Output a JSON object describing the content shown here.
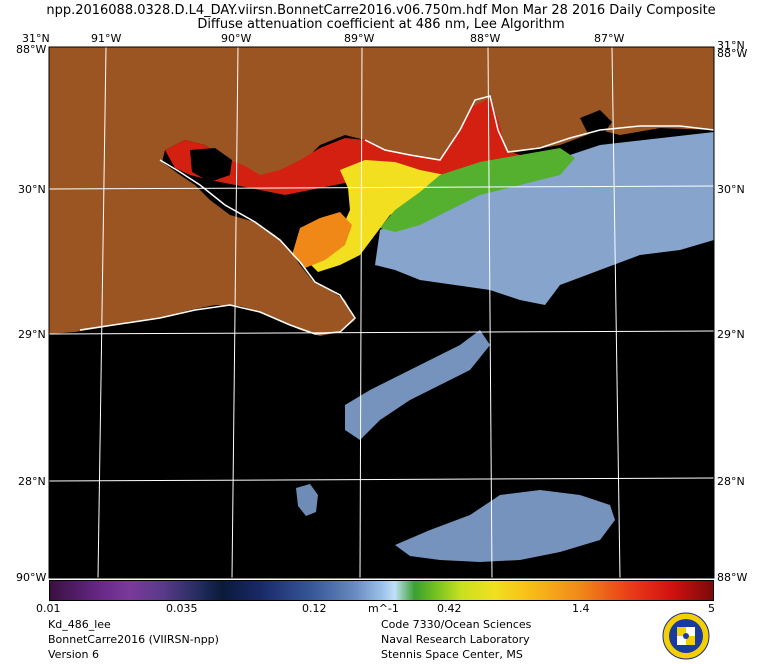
{
  "header": {
    "title_line1": "npp.2016088.0328.D.L4_DAY.viirsn.BonnetCarre2016.v06.750m.hdf    Mon Mar 28 2016 Daily Composite",
    "title_line2": "Diffuse attenuation coefficient at 486 nm, Lee Algorithm"
  },
  "axes": {
    "top_lon": [
      "91°W",
      "90°W",
      "89°W",
      "88°W",
      "87°W"
    ],
    "lat_labels": [
      "30°N",
      "29°N",
      "28°N"
    ],
    "corner_top_left": "31°N",
    "corner_top_left_sub": "88°W",
    "corner_top_right": "31°N",
    "corner_top_right_sub": "88°W",
    "corner_bottom_left": "90°W",
    "corner_bottom_right": "88°W"
  },
  "colorbar": {
    "ticks": [
      "0.01",
      "0.035",
      "0.12",
      "m^-1",
      "0.42",
      "1.4",
      "5"
    ]
  },
  "footer": {
    "left": [
      "Kd_486_lee",
      "BonnetCarre2016 (VIIRSN-npp)",
      "Version 6"
    ],
    "right": [
      "Code 7330/Ocean Sciences",
      "Naval Research Laboratory",
      "Stennis Space Center, MS"
    ]
  },
  "colors": {
    "land": "#9b5523",
    "water_dark": "#000000",
    "plume_red": "#d42010",
    "plume_yellow": "#f2e020",
    "plume_green": "#55b030",
    "shelf_blue": "#86a4cc",
    "grid": "#ffffff"
  }
}
